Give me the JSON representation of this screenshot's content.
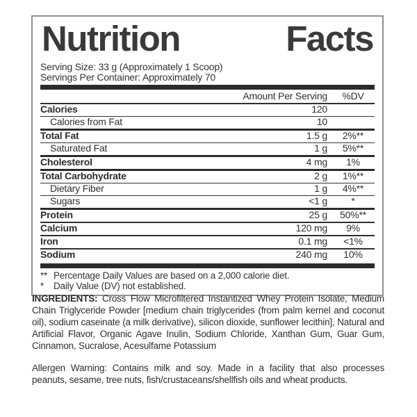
{
  "label": {
    "title": {
      "word1": "Nutrition",
      "word2": "Facts"
    },
    "serving_size": "Serving Size: 33 g (Approximately 1 Scoop)",
    "servings_per_container": "Servings Per Container: Approximately 70",
    "columns": {
      "amount": "Amount Per Serving",
      "dv": "%DV"
    },
    "rows": [
      {
        "name": "Calories",
        "amount": "120",
        "dv": ""
      },
      {
        "name": "Calories from Fat",
        "amount": "10",
        "dv": ""
      },
      {
        "name": "Total Fat",
        "amount": "1.5 g",
        "dv": "2%**"
      },
      {
        "name": "Saturated Fat",
        "amount": "1 g",
        "dv": "5%**"
      },
      {
        "name": "Cholesterol",
        "amount": "4 mg",
        "dv": "1%"
      },
      {
        "name": "Total Carbohydrate",
        "amount": "2 g",
        "dv": "1%**"
      },
      {
        "name": "Dietary Fiber",
        "amount": "1 g",
        "dv": "4%**"
      },
      {
        "name": "Sugars",
        "amount": "<1 g",
        "dv": "*"
      },
      {
        "name": "Protein",
        "amount": "25 g",
        "dv": "50%**"
      },
      {
        "name": "Calcium",
        "amount": "120 mg",
        "dv": "9%"
      },
      {
        "name": "Iron",
        "amount": "0.1 mg",
        "dv": "<1%"
      },
      {
        "name": "Sodium",
        "amount": "240 mg",
        "dv": "10%"
      }
    ],
    "footnotes": [
      {
        "marker": "**",
        "text": "Percentage Daily Values are based on a 2,000 calorie diet."
      },
      {
        "marker": "*",
        "text": "Daily Value (DV) not established."
      }
    ]
  },
  "ingredients": {
    "heading": "INGREDIENTS:",
    "text": "Cross Flow Microfiltered Instantized Whey Protein Isolate, Medium Chain Triglyceride Powder [medium chain triglycerides (from palm kernel and coconut oil), sodium caseinate (a milk derivative), silicon dioxide, sunflower lecithin], Natural and Artificial Flavor, Organic Agave Inulin, Sodium Chloride, Xanthan Gum, Guar Gum, Cinnamon, Sucralose, Acesulfame Potassium"
  },
  "allergen": {
    "text": "Allergen Warning: Contains milk and soy. Made in a facility that also processes peanuts, sesame, tree nuts, fish/crustaceans/shellfish oils and wheat products."
  },
  "colors": {
    "text": "#2f2f2f",
    "bar": "#2b2b2b",
    "border": "#919191"
  }
}
